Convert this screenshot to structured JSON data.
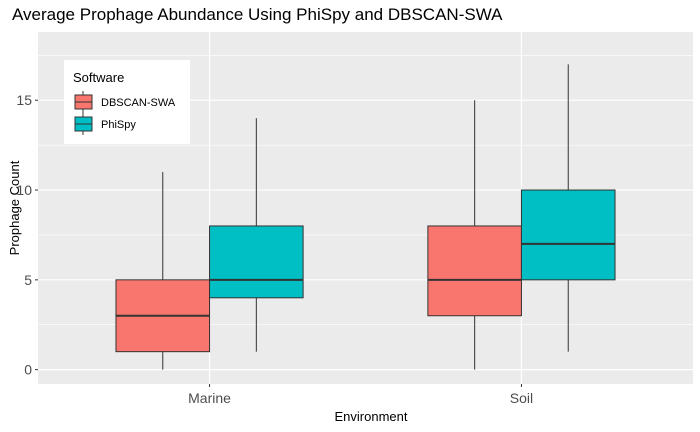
{
  "chart_data": {
    "type": "boxplot",
    "title": "Average Prophage Abundance Using PhiSpy and DBSCAN-SWA",
    "xlabel": "Environment",
    "ylabel": "Prophage Count",
    "categories": [
      "Marine",
      "Soil"
    ],
    "ylim": [
      -0.8,
      18.8
    ],
    "yticks": [
      0,
      5,
      10,
      15
    ],
    "grid": true,
    "legend": {
      "title": "Software",
      "position": "top-left",
      "entries": [
        "DBSCAN-SWA",
        "PhiSpy"
      ]
    },
    "series": [
      {
        "name": "DBSCAN-SWA",
        "color": "#F8766D",
        "boxes": [
          {
            "category": "Marine",
            "min": 0,
            "q1": 1,
            "median": 3,
            "q3": 5,
            "max": 11
          },
          {
            "category": "Soil",
            "min": 0,
            "q1": 3,
            "median": 5,
            "q3": 8,
            "max": 15
          }
        ]
      },
      {
        "name": "PhiSpy",
        "color": "#00BFC4",
        "boxes": [
          {
            "category": "Marine",
            "min": 1,
            "q1": 4,
            "median": 5,
            "q3": 8,
            "max": 14
          },
          {
            "category": "Soil",
            "min": 1,
            "q1": 5,
            "median": 7,
            "q3": 10,
            "max": 17
          }
        ]
      }
    ]
  }
}
